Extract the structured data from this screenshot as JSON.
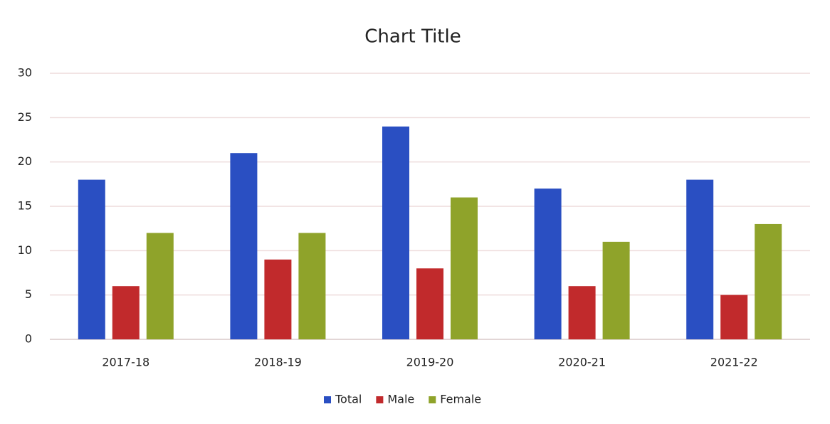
{
  "chart_data": {
    "type": "bar",
    "title": "Chart Title",
    "categories": [
      "2017-18",
      "2018-19",
      "2019-20",
      "2020-21",
      "2021-22"
    ],
    "series": [
      {
        "name": "Total",
        "color": "#2a4fc2",
        "values": [
          18,
          21,
          24,
          17,
          18
        ]
      },
      {
        "name": "Male",
        "color": "#c12a2c",
        "values": [
          6,
          9,
          8,
          6,
          5
        ]
      },
      {
        "name": "Female",
        "color": "#8fa32a",
        "values": [
          12,
          12,
          16,
          11,
          13
        ]
      }
    ],
    "ylim": [
      0,
      30
    ],
    "yticks": [
      0,
      5,
      10,
      15,
      20,
      25,
      30
    ],
    "grid": true,
    "legend": "bottom"
  }
}
